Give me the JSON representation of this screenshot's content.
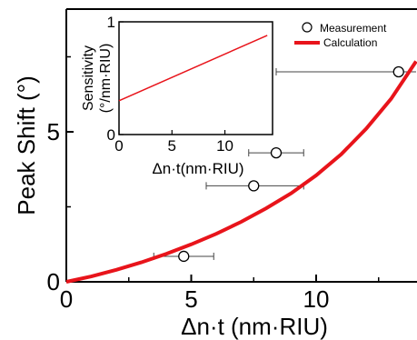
{
  "chart_data": [
    {
      "type": "scatter",
      "xlabel": "Δn·t (nm·RIU)",
      "ylabel": "Peak Shift (°)",
      "xlim": [
        0,
        14
      ],
      "ylim": [
        0,
        9
      ],
      "x_ticks": [
        0,
        5,
        10
      ],
      "y_ticks": [
        0,
        5
      ],
      "grid": false,
      "legend_position": "top-right",
      "series": [
        {
          "name": "Measurement",
          "kind": "points-with-x-errorbars",
          "color": "#000000",
          "points": [
            {
              "x": 4.7,
              "y": 0.85,
              "xerr_low": 3.5,
              "xerr_high": 5.9
            },
            {
              "x": 7.5,
              "y": 3.2,
              "xerr_low": 5.6,
              "xerr_high": 9.5
            },
            {
              "x": 8.4,
              "y": 4.3,
              "xerr_low": 7.3,
              "xerr_high": 9.5
            },
            {
              "x": 13.3,
              "y": 7.0,
              "xerr_low": 8.4,
              "xerr_high": 14.5
            }
          ]
        },
        {
          "name": "Calculation",
          "kind": "line",
          "color": "#e8141b",
          "x": [
            0,
            1,
            2,
            3,
            4,
            5,
            6,
            7,
            8,
            9,
            10,
            11,
            12,
            13,
            14
          ],
          "y": [
            0.0,
            0.18,
            0.4,
            0.65,
            0.93,
            1.25,
            1.6,
            2.0,
            2.45,
            2.95,
            3.55,
            4.25,
            5.1,
            6.1,
            7.35
          ]
        }
      ]
    },
    {
      "type": "line",
      "role": "inset",
      "xlabel": "Δn·t(nm·RIU)",
      "ylabel": "Sensitivity (°/nm·RIU)",
      "xlim": [
        0,
        14
      ],
      "ylim": [
        0,
        1
      ],
      "x_ticks": [
        0,
        5,
        10
      ],
      "y_ticks": [
        0,
        1
      ],
      "series": [
        {
          "color": "#e8141b",
          "x": [
            0,
            14
          ],
          "y": [
            0.3,
            0.88
          ]
        }
      ]
    }
  ]
}
